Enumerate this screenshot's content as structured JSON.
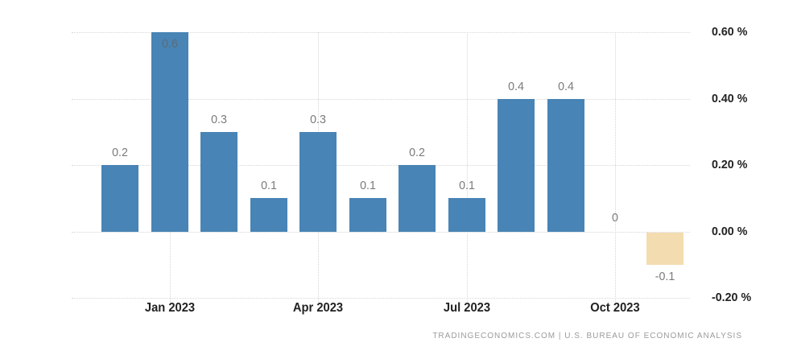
{
  "attribution": "TRADINGECONOMICS.COM | U.S. BUREAU OF ECONOMIC ANALYSIS",
  "chart_data": {
    "type": "bar",
    "title": "",
    "xlabel": "",
    "ylabel": "",
    "values": [
      0.2,
      0.6,
      0.3,
      0.1,
      0.3,
      0.1,
      0.2,
      0.1,
      0.4,
      0.4,
      0,
      -0.1
    ],
    "bar_labels": [
      "0.2",
      "0.6",
      "0.3",
      "0.1",
      "0.3",
      "0.1",
      "0.2",
      "0.1",
      "0.4",
      "0.4",
      "0",
      "-0.1"
    ],
    "x_tick_labels": [
      "Jan 2023",
      "Apr 2023",
      "Jul 2023",
      "Oct 2023"
    ],
    "x_tick_bar_indices": [
      1,
      4,
      7,
      10
    ],
    "y_tick_labels": [
      "0.60 %",
      "0.40 %",
      "0.20 %",
      "0.00 %",
      "-0.20 %"
    ],
    "y_tick_values": [
      0.6,
      0.4,
      0.2,
      0.0,
      -0.2
    ],
    "ylim": [
      -0.2,
      0.6
    ],
    "grid": "dotted",
    "legend": null,
    "colors": {
      "positive_bar": "#4884b5",
      "negative_bar": "#f3dcb0",
      "value_label": "#7b7b7b",
      "inside_value_label": "#5a6b7b",
      "axis_label": "#222222",
      "gridline": "#d6d6d6",
      "attribution": "#9b9b9b"
    }
  }
}
